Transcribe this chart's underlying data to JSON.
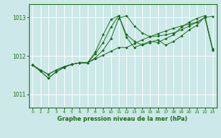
{
  "bg_color": "#cce8e8",
  "grid_color": "#ffffff",
  "line_color": "#1a6b1a",
  "marker_color": "#1a6b1a",
  "title": "Graphe pression niveau de la mer (hPa)",
  "xlim": [
    -0.5,
    23.5
  ],
  "ylim": [
    1010.65,
    1013.35
  ],
  "yticks": [
    1011,
    1012,
    1013
  ],
  "xticks": [
    0,
    1,
    2,
    3,
    4,
    5,
    6,
    7,
    8,
    9,
    10,
    11,
    12,
    13,
    14,
    15,
    16,
    17,
    18,
    19,
    20,
    21,
    22,
    23
  ],
  "series": [
    [
      1011.76,
      1011.63,
      1011.52,
      1011.63,
      1011.72,
      1011.78,
      1011.82,
      1011.82,
      1011.92,
      1012.02,
      1012.12,
      1012.22,
      1012.22,
      1012.32,
      1012.42,
      1012.5,
      1012.58,
      1012.65,
      1012.72,
      1012.78,
      1012.83,
      1012.88,
      1013.0,
      1012.15
    ],
    [
      1011.76,
      1011.63,
      1011.52,
      1011.63,
      1011.72,
      1011.78,
      1011.82,
      1011.82,
      1011.95,
      1012.15,
      1012.45,
      1012.98,
      1013.05,
      1012.78,
      1012.6,
      1012.5,
      1012.52,
      1012.55,
      1012.6,
      1012.68,
      1012.78,
      1012.88,
      1013.0,
      1013.03
    ],
    [
      1011.76,
      1011.6,
      1011.42,
      1011.58,
      1011.7,
      1011.78,
      1011.82,
      1011.82,
      1012.05,
      1012.35,
      1012.75,
      1013.05,
      1012.55,
      1012.38,
      1012.28,
      1012.35,
      1012.42,
      1012.28,
      1012.38,
      1012.52,
      1012.68,
      1012.8,
      1013.02,
      1012.18
    ],
    [
      1011.76,
      1011.6,
      1011.42,
      1011.58,
      1011.7,
      1011.78,
      1011.82,
      1011.82,
      1012.1,
      1012.55,
      1012.95,
      1013.05,
      1012.48,
      1012.22,
      1012.3,
      1012.38,
      1012.35,
      1012.45,
      1012.55,
      1012.75,
      1012.88,
      1012.98,
      1013.05,
      1012.18
    ]
  ]
}
